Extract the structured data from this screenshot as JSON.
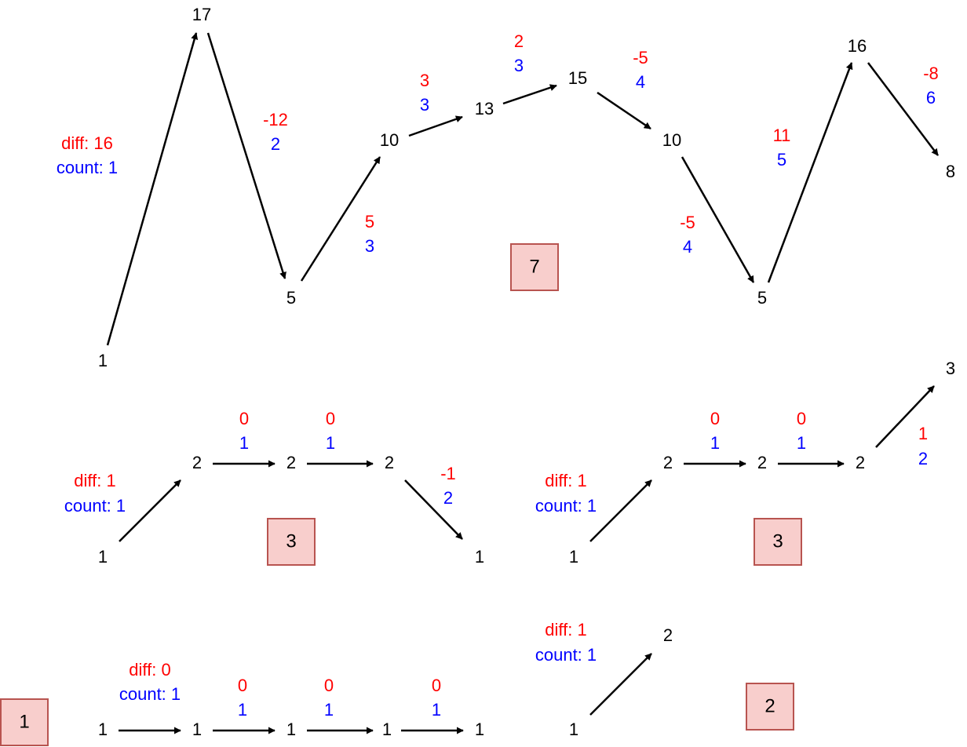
{
  "colors": {
    "diff": "#ff0000",
    "count": "#0000ff",
    "box_fill": "#f8cecc",
    "box_stroke": "#b85450"
  },
  "diagram1": {
    "nodes": [
      "1",
      "17",
      "5",
      "10",
      "13",
      "15",
      "10",
      "5",
      "16",
      "8"
    ],
    "diff_label": "diff: 16",
    "count_label": "count: 1",
    "steps": [
      {
        "diff": "-12",
        "count": "2"
      },
      {
        "diff": "5",
        "count": "3"
      },
      {
        "diff": "3",
        "count": "3"
      },
      {
        "diff": "2",
        "count": "3"
      },
      {
        "diff": "-5",
        "count": "4"
      },
      {
        "diff": "-5",
        "count": "4"
      },
      {
        "diff": "11",
        "count": "5"
      },
      {
        "diff": "-8",
        "count": "6"
      }
    ],
    "result": "7"
  },
  "diagram2": {
    "nodes": [
      "1",
      "2",
      "2",
      "2",
      "1"
    ],
    "diff_label": "diff: 1",
    "count_label": "count: 1",
    "steps": [
      {
        "diff": "0",
        "count": "1"
      },
      {
        "diff": "0",
        "count": "1"
      },
      {
        "diff": "-1",
        "count": "2"
      }
    ],
    "result": "3"
  },
  "diagram3": {
    "nodes": [
      "1",
      "2",
      "2",
      "2",
      "3"
    ],
    "diff_label": "diff: 1",
    "count_label": "count: 1",
    "steps": [
      {
        "diff": "0",
        "count": "1"
      },
      {
        "diff": "0",
        "count": "1"
      },
      {
        "diff": "1",
        "count": "2"
      }
    ],
    "result": "3"
  },
  "diagram4": {
    "nodes": [
      "1",
      "1",
      "1",
      "1",
      "1"
    ],
    "diff_label": "diff: 0",
    "count_label": "count: 1",
    "steps": [
      {
        "diff": "0",
        "count": "1"
      },
      {
        "diff": "0",
        "count": "1"
      },
      {
        "diff": "0",
        "count": "1"
      }
    ],
    "result": "1"
  },
  "diagram5": {
    "nodes": [
      "1",
      "2"
    ],
    "diff_label": "diff: 1",
    "count_label": "count: 1",
    "result": "2"
  }
}
